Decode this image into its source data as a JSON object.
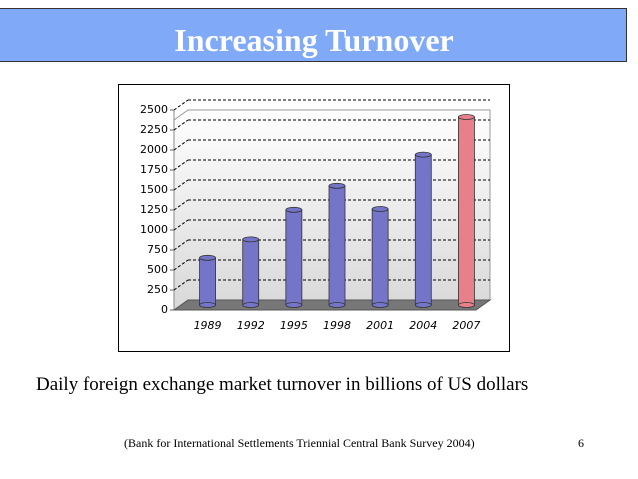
{
  "title": "Increasing Turnover",
  "chart_data": {
    "type": "bar",
    "categories": [
      "1989",
      "1992",
      "1995",
      "1998",
      "2001",
      "2004",
      "2007"
    ],
    "values": [
      590,
      820,
      1190,
      1490,
      1200,
      1880,
      2350
    ],
    "colors": [
      "#7474c8",
      "#7474c8",
      "#7474c8",
      "#7474c8",
      "#7474c8",
      "#7474c8",
      "#e8808c"
    ],
    "ylim": [
      0,
      2500
    ],
    "yticks": [
      0,
      250,
      500,
      750,
      1000,
      1250,
      1500,
      1750,
      2000,
      2250,
      2500
    ],
    "grid": true
  },
  "caption": "Daily foreign exchange market turnover in billions of US dollars",
  "source": "(Bank for International Settlements Triennial Central Bank Survey 2004)",
  "page_number": 6
}
